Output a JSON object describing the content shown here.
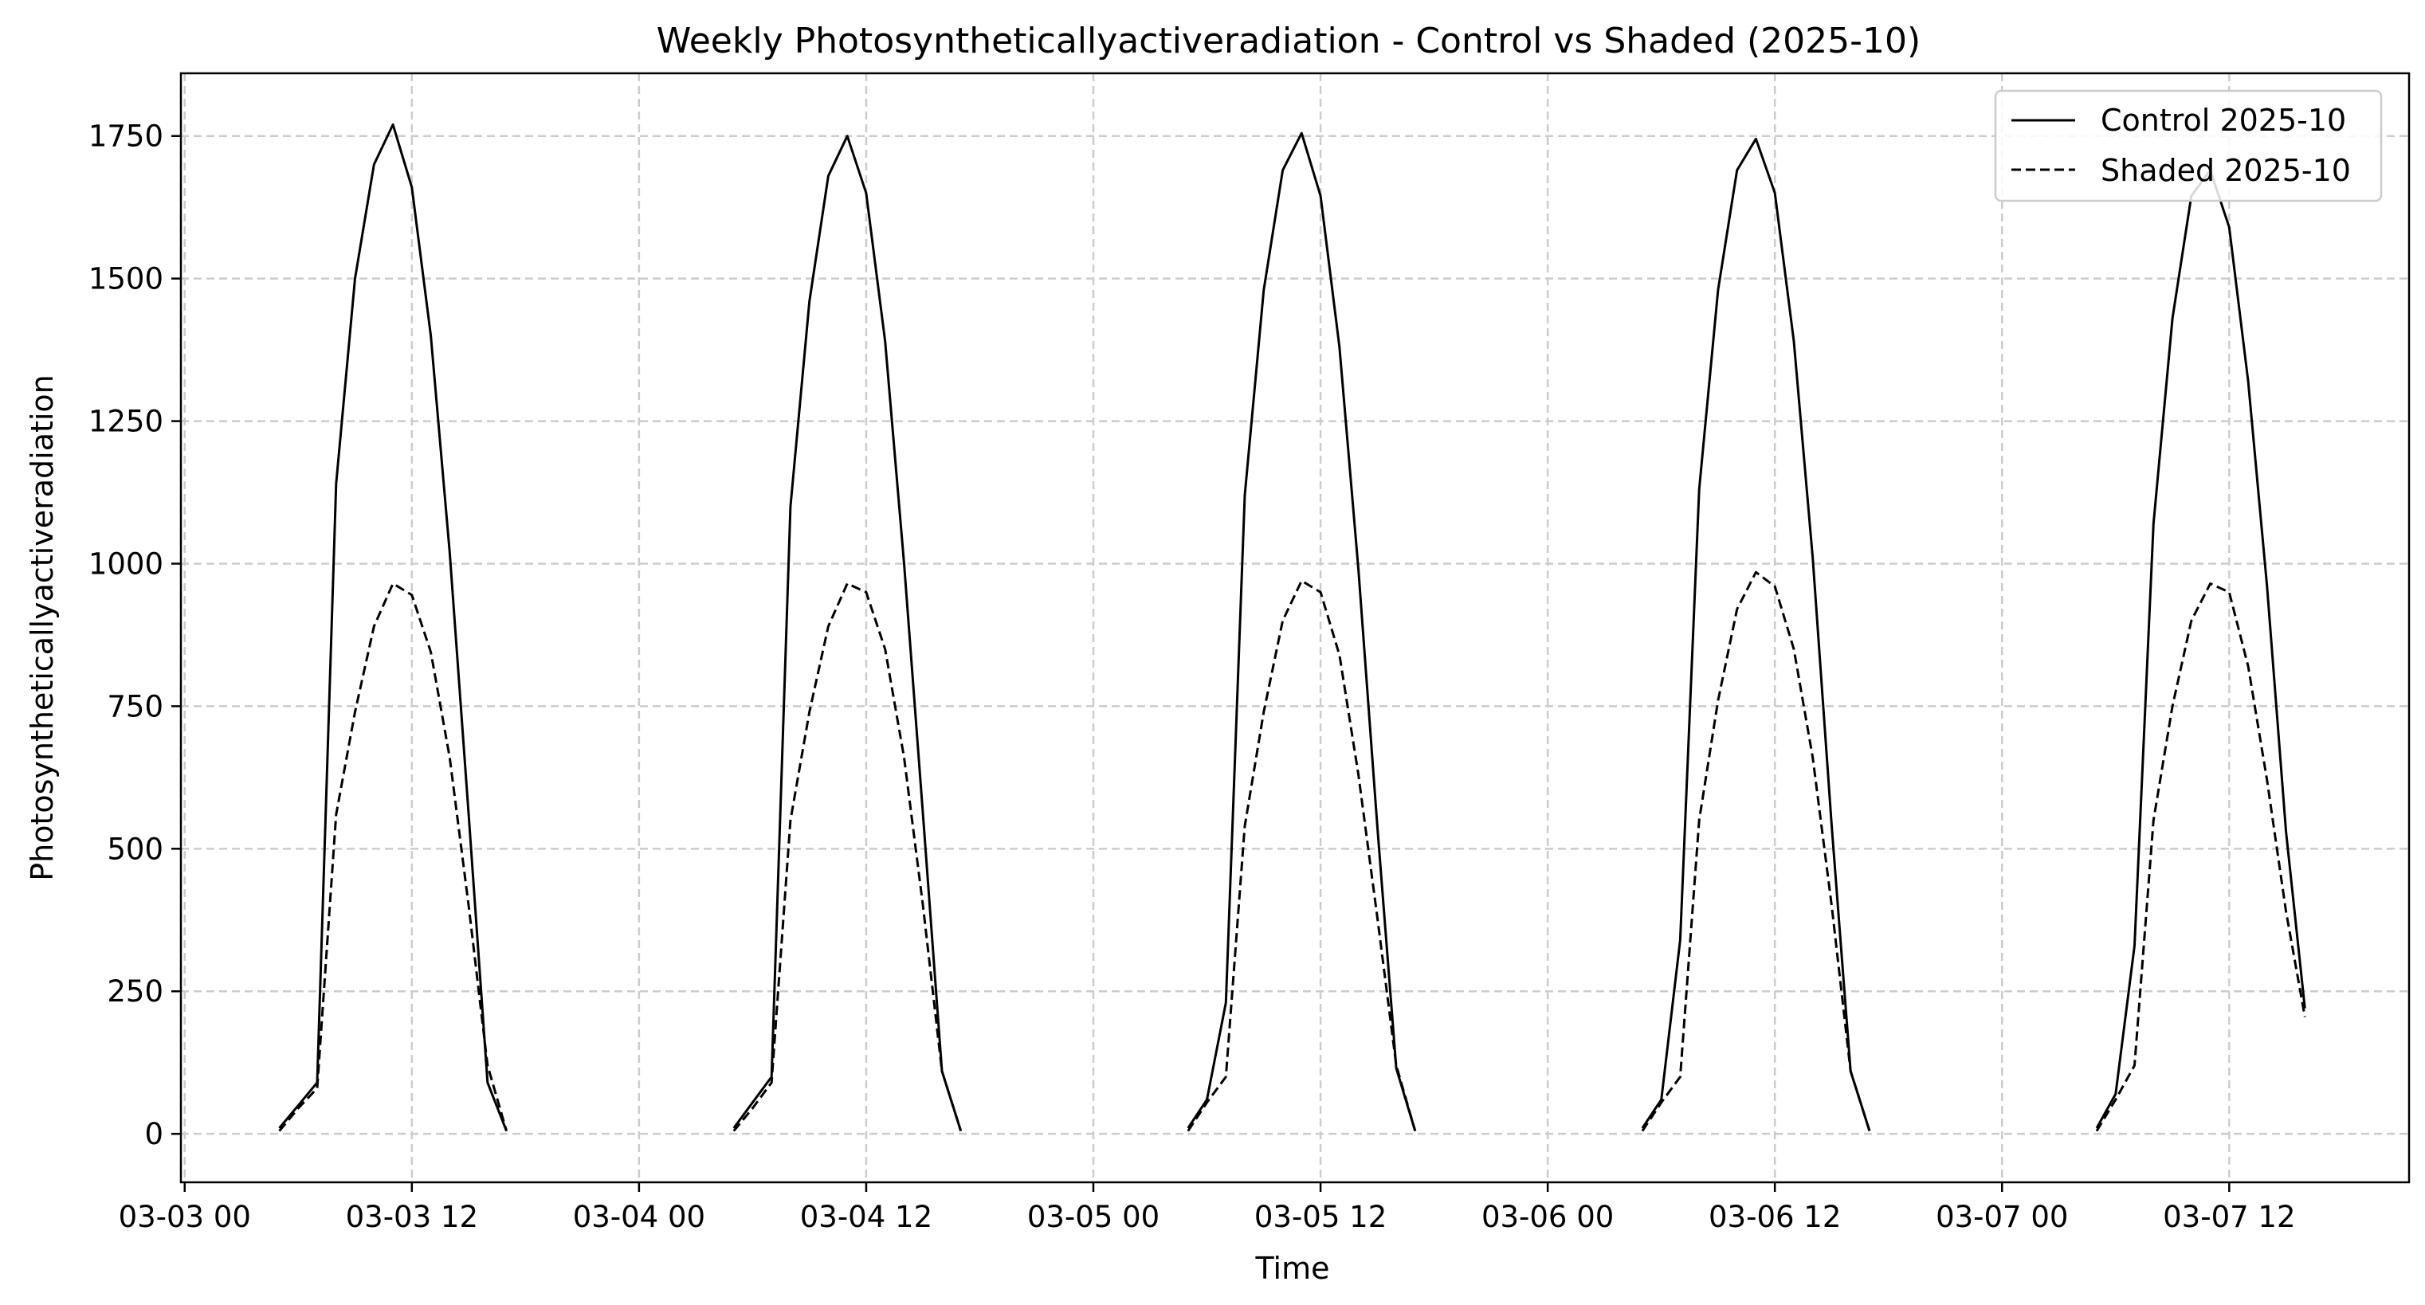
{
  "chart_data": {
    "type": "line",
    "title": "Weekly Photosyntheticallyactiveradiation - Control vs Shaded (2025-10)",
    "xlabel": "Time",
    "ylabel": "Photosyntheticallyactiveradiation",
    "x_unit": "hours after 03-03 00",
    "xlim": [
      -0.2,
      117.5
    ],
    "ylim": [
      -85,
      1860
    ],
    "grid": true,
    "legend_position": "upper right",
    "x_ticks": [
      {
        "value": 0,
        "label": "03-03 00"
      },
      {
        "value": 12,
        "label": "03-03 12"
      },
      {
        "value": 24,
        "label": "03-04 00"
      },
      {
        "value": 36,
        "label": "03-04 12"
      },
      {
        "value": 48,
        "label": "03-05 00"
      },
      {
        "value": 60,
        "label": "03-05 12"
      },
      {
        "value": 72,
        "label": "03-06 00"
      },
      {
        "value": 84,
        "label": "03-06 12"
      },
      {
        "value": 96,
        "label": "03-07 00"
      },
      {
        "value": 108,
        "label": "03-07 12"
      }
    ],
    "y_ticks": [
      {
        "value": 0,
        "label": "0"
      },
      {
        "value": 250,
        "label": "250"
      },
      {
        "value": 500,
        "label": "500"
      },
      {
        "value": 750,
        "label": "750"
      },
      {
        "value": 1000,
        "label": "1000"
      },
      {
        "value": 1250,
        "label": "1250"
      },
      {
        "value": 1500,
        "label": "1500"
      },
      {
        "value": 1750,
        "label": "1750"
      }
    ],
    "series": [
      {
        "name": "Control 2025-10",
        "style": "solid",
        "color": "#000000",
        "segments": [
          [
            [
              5,
              10
            ],
            [
              6,
              50
            ],
            [
              7,
              90
            ],
            [
              8,
              1140
            ],
            [
              9,
              1500
            ],
            [
              10,
              1700
            ],
            [
              11,
              1770
            ],
            [
              12,
              1660
            ],
            [
              13,
              1400
            ],
            [
              14,
              1020
            ],
            [
              15,
              560
            ],
            [
              16,
              90
            ],
            [
              17,
              5
            ]
          ],
          [
            [
              29,
              10
            ],
            [
              30,
              55
            ],
            [
              31,
              100
            ],
            [
              32,
              1100
            ],
            [
              33,
              1460
            ],
            [
              34,
              1680
            ],
            [
              35,
              1750
            ],
            [
              36,
              1650
            ],
            [
              37,
              1390
            ],
            [
              38,
              1000
            ],
            [
              39,
              560
            ],
            [
              40,
              110
            ],
            [
              41,
              5
            ]
          ],
          [
            [
              53,
              10
            ],
            [
              54,
              60
            ],
            [
              55,
              230
            ],
            [
              56,
              1120
            ],
            [
              57,
              1480
            ],
            [
              58,
              1690
            ],
            [
              59,
              1755
            ],
            [
              60,
              1645
            ],
            [
              61,
              1380
            ],
            [
              62,
              990
            ],
            [
              63,
              540
            ],
            [
              64,
              115
            ],
            [
              65,
              5
            ]
          ],
          [
            [
              77,
              10
            ],
            [
              78,
              60
            ],
            [
              79,
              340
            ],
            [
              80,
              1130
            ],
            [
              81,
              1480
            ],
            [
              82,
              1690
            ],
            [
              83,
              1745
            ],
            [
              84,
              1650
            ],
            [
              85,
              1390
            ],
            [
              86,
              1010
            ],
            [
              87,
              540
            ],
            [
              88,
              110
            ],
            [
              89,
              5
            ]
          ],
          [
            [
              101,
              10
            ],
            [
              102,
              70
            ],
            [
              103,
              330
            ],
            [
              104,
              1070
            ],
            [
              105,
              1430
            ],
            [
              106,
              1645
            ],
            [
              107,
              1690
            ],
            [
              108,
              1590
            ],
            [
              109,
              1320
            ],
            [
              110,
              960
            ],
            [
              111,
              530
            ],
            [
              112,
              220
            ]
          ]
        ]
      },
      {
        "name": "Shaded 2025-10",
        "style": "dashed",
        "color": "#000000",
        "segments": [
          [
            [
              5,
              5
            ],
            [
              6,
              45
            ],
            [
              7,
              80
            ],
            [
              8,
              560
            ],
            [
              9,
              740
            ],
            [
              10,
              890
            ],
            [
              11,
              965
            ],
            [
              12,
              945
            ],
            [
              13,
              845
            ],
            [
              14,
              660
            ],
            [
              15,
              400
            ],
            [
              16,
              120
            ],
            [
              17,
              5
            ]
          ],
          [
            [
              29,
              5
            ],
            [
              30,
              45
            ],
            [
              31,
              90
            ],
            [
              32,
              550
            ],
            [
              33,
              740
            ],
            [
              34,
              890
            ],
            [
              35,
              965
            ],
            [
              36,
              950
            ],
            [
              37,
              850
            ],
            [
              38,
              660
            ],
            [
              39,
              400
            ],
            [
              40,
              110
            ],
            [
              41,
              5
            ]
          ],
          [
            [
              53,
              5
            ],
            [
              54,
              55
            ],
            [
              55,
              100
            ],
            [
              56,
              540
            ],
            [
              57,
              740
            ],
            [
              58,
              900
            ],
            [
              59,
              970
            ],
            [
              60,
              950
            ],
            [
              61,
              840
            ],
            [
              62,
              630
            ],
            [
              63,
              380
            ],
            [
              64,
              120
            ],
            [
              65,
              5
            ]
          ],
          [
            [
              77,
              5
            ],
            [
              78,
              55
            ],
            [
              79,
              100
            ],
            [
              80,
              550
            ],
            [
              81,
              760
            ],
            [
              82,
              920
            ],
            [
              83,
              985
            ],
            [
              84,
              960
            ],
            [
              85,
              850
            ],
            [
              86,
              660
            ],
            [
              87,
              400
            ],
            [
              88,
              110
            ],
            [
              89,
              5
            ]
          ],
          [
            [
              101,
              5
            ],
            [
              102,
              60
            ],
            [
              103,
              120
            ],
            [
              104,
              550
            ],
            [
              105,
              750
            ],
            [
              106,
              900
            ],
            [
              107,
              965
            ],
            [
              108,
              950
            ],
            [
              109,
              820
            ],
            [
              110,
              620
            ],
            [
              111,
              390
            ],
            [
              112,
              205
            ]
          ]
        ]
      }
    ]
  }
}
